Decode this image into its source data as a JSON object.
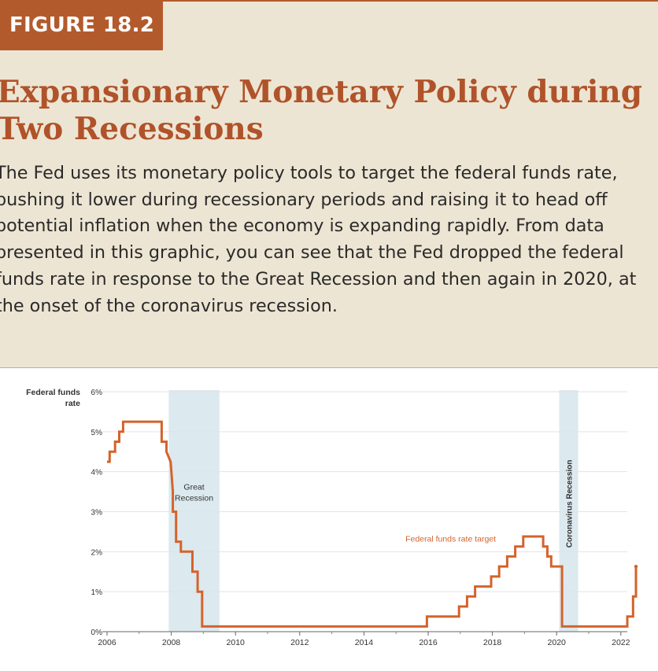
{
  "header": {
    "figure_label": "FIGURE 18.2",
    "title": "Expansionary Monetary Policy during Two Recessions",
    "description": "The Fed uses its monetary policy tools to target the federal funds rate, pushing it lower during recessionary periods and raising it to head off potential inflation when the economy is expanding rapidly. From data presented in this graphic, you can see that the Fed dropped the federal funds rate in response to the Great Recession and then again in 2020, at the onset of the coronavirus recession."
  },
  "colors": {
    "accent": "#b35a2c",
    "line": "#d4632b",
    "recession_band": "#dce9ee",
    "background": "#ede5d3"
  },
  "chart_data": {
    "type": "line",
    "ylabel": "Federal funds rate",
    "xlim": [
      2006,
      2022.4
    ],
    "ylim": [
      0,
      6
    ],
    "x_ticks": [
      2006,
      2008,
      2010,
      2012,
      2014,
      2016,
      2018,
      2020,
      2022
    ],
    "x_tick_labels": [
      "2006",
      "2008",
      "2010",
      "2012",
      "2014",
      "2016",
      "2018",
      "2020",
      "2022"
    ],
    "y_ticks": [
      0,
      1,
      2,
      3,
      4,
      5,
      6
    ],
    "y_tick_labels": [
      "0%",
      "1%",
      "2%",
      "3%",
      "4%",
      "5%",
      "6%"
    ],
    "grid": "horizontal",
    "recessions": [
      {
        "label": "Great Recession",
        "start": 2007.92,
        "end": 2009.5,
        "label_orientation": "horizontal"
      },
      {
        "label": "Coronavirus Recession",
        "start": 2020.08,
        "end": 2020.67,
        "label_orientation": "vertical"
      }
    ],
    "series": [
      {
        "name": "Federal funds rate target",
        "x": [
          2006.0,
          2006.08,
          2006.08,
          2006.25,
          2006.25,
          2006.38,
          2006.38,
          2006.5,
          2006.5,
          2007.7,
          2007.7,
          2007.85,
          2007.85,
          2007.98,
          2008.05,
          2008.05,
          2008.15,
          2008.15,
          2008.3,
          2008.3,
          2008.66,
          2008.66,
          2008.82,
          2008.82,
          2008.96,
          2008.96,
          2015.96,
          2015.96,
          2016.96,
          2016.96,
          2017.21,
          2017.21,
          2017.46,
          2017.46,
          2017.96,
          2017.96,
          2018.21,
          2018.21,
          2018.46,
          2018.46,
          2018.71,
          2018.71,
          2018.96,
          2018.96,
          2019.58,
          2019.58,
          2019.71,
          2019.71,
          2019.83,
          2019.83,
          2020.17,
          2020.17,
          2022.2,
          2022.2,
          2022.38,
          2022.38,
          2022.47,
          2022.47
        ],
        "y": [
          4.25,
          4.25,
          4.5,
          4.5,
          4.75,
          4.75,
          5.0,
          5.0,
          5.25,
          5.25,
          4.75,
          4.75,
          4.5,
          4.25,
          3.5,
          3.0,
          3.0,
          2.25,
          2.25,
          2.0,
          2.0,
          1.5,
          1.5,
          1.0,
          1.0,
          0.13,
          0.13,
          0.38,
          0.38,
          0.63,
          0.63,
          0.88,
          0.88,
          1.13,
          1.13,
          1.38,
          1.38,
          1.63,
          1.63,
          1.88,
          1.88,
          2.13,
          2.13,
          2.38,
          2.38,
          2.13,
          2.13,
          1.88,
          1.88,
          1.63,
          1.63,
          0.13,
          0.13,
          0.38,
          0.38,
          0.88,
          0.88,
          1.63
        ],
        "label_at": {
          "x": 2016.7,
          "y": 2.25
        }
      }
    ]
  }
}
